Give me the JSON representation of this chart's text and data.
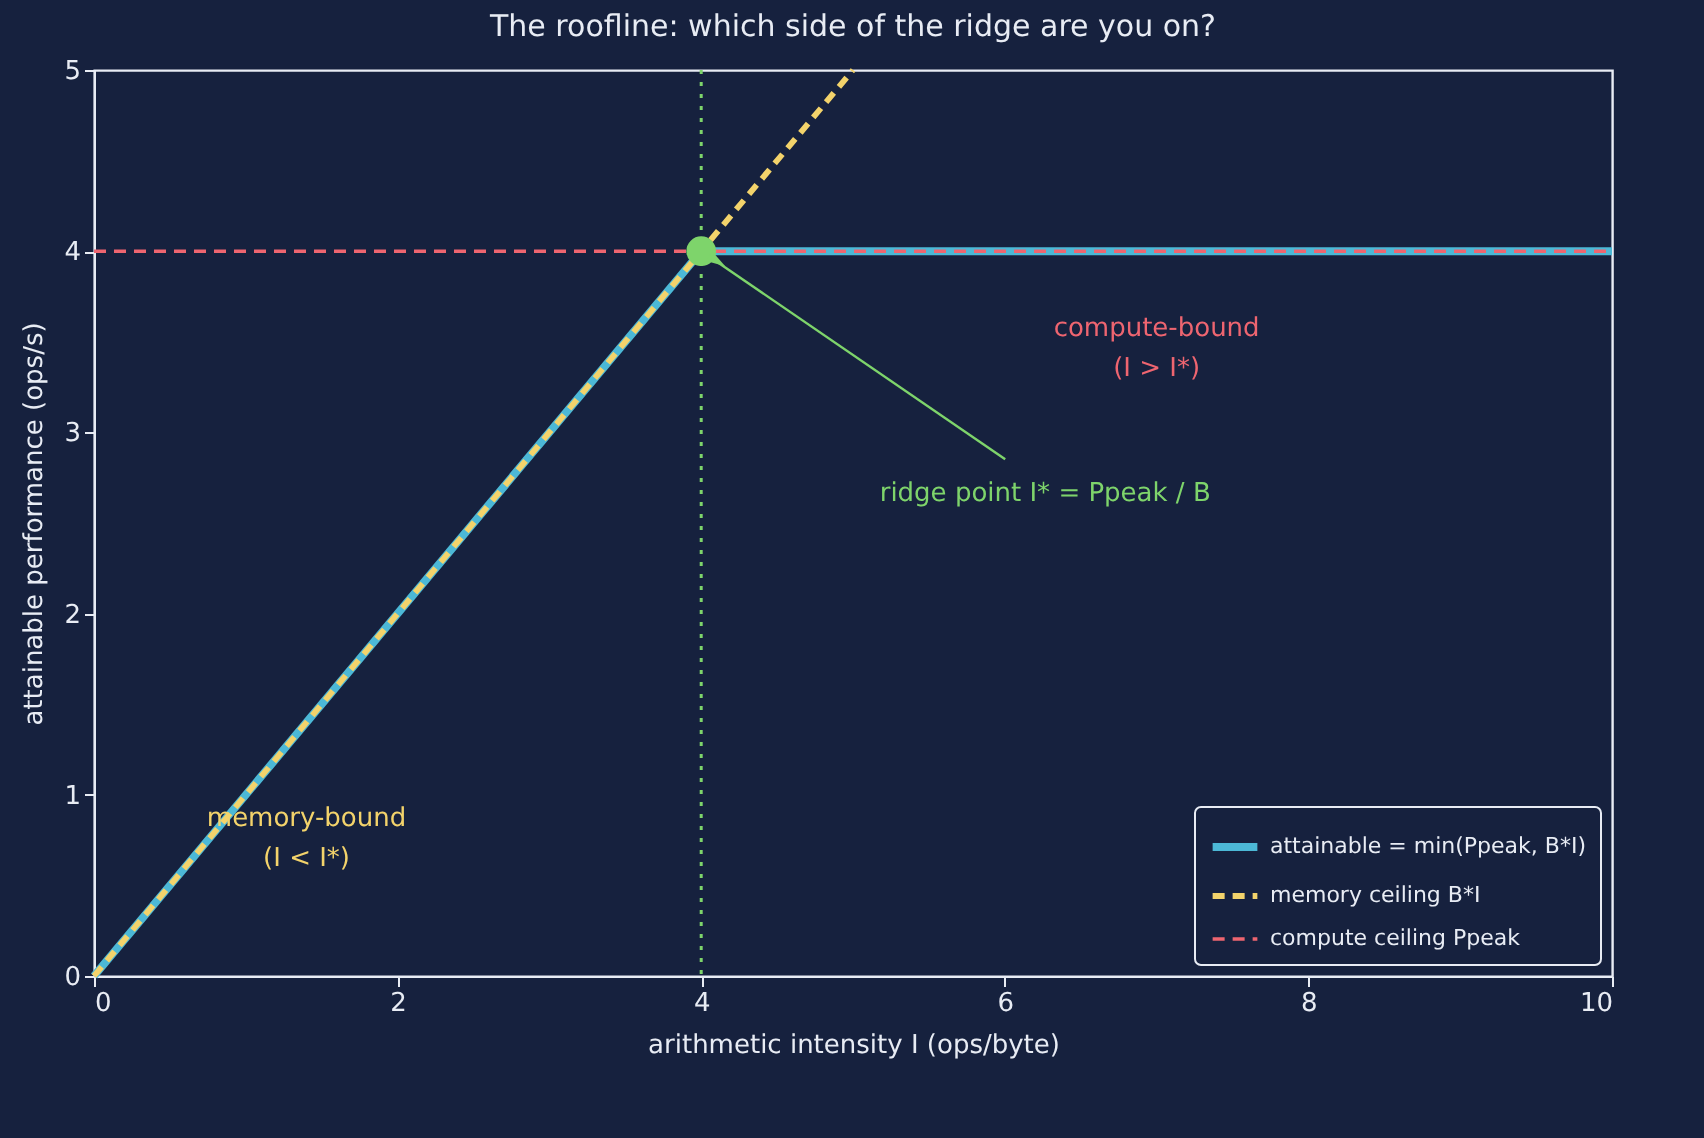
{
  "chart_data": {
    "type": "line",
    "title": "The roofline: which side of the ridge are you on?",
    "xlabel": "arithmetic intensity  I  (ops/byte)",
    "ylabel": "attainable performance  (ops/s)",
    "xlim": [
      0,
      10
    ],
    "ylim": [
      0,
      5
    ],
    "xticks": [
      0,
      2,
      4,
      6,
      8,
      10
    ],
    "yticks": [
      0,
      1,
      2,
      3,
      4,
      5
    ],
    "grid": false,
    "legend": "bottom right",
    "series": [
      {
        "name": "attainable = min(Ppeak, B*I)",
        "color": "#4cb8d6",
        "x": [
          0,
          4,
          10
        ],
        "values": [
          0,
          4,
          4
        ],
        "line_style": "solid"
      },
      {
        "name": "memory ceiling B*I",
        "color": "#f3d36b",
        "x": [
          0,
          5
        ],
        "values": [
          0,
          5
        ],
        "line_style": "dashed"
      },
      {
        "name": "compute ceiling Ppeak",
        "color": "#ee6570",
        "x": [
          0,
          10
        ],
        "values": [
          4,
          4
        ],
        "line_style": "dashed"
      },
      {
        "type": "scatter",
        "color": "#7ed46b",
        "x": [
          4
        ],
        "values": [
          4
        ],
        "marker": "circle"
      }
    ],
    "ref_lines": [
      {
        "axis": "x",
        "value": 4,
        "color": "#7ed46b",
        "line_style": "dotted"
      }
    ],
    "annotations": [
      {
        "text": "ridge point  I* = Ppeak / B",
        "x": 4,
        "y": 4
      },
      "compute-bound\n(I > I*)",
      "memory-bound\n(I < I*)"
    ]
  }
}
